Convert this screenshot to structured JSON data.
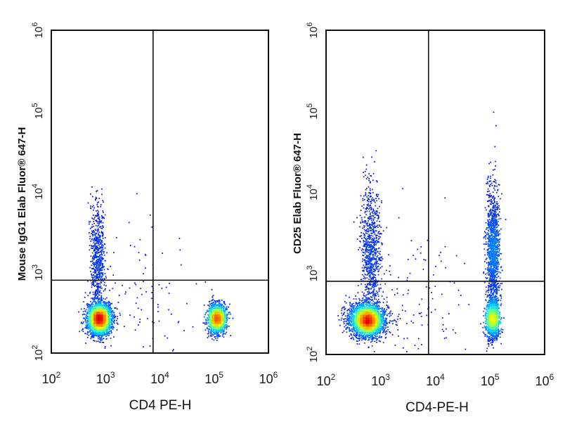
{
  "chart_data": [
    {
      "type": "scatter",
      "subtype": "flow-cytometry-density-dot-plot",
      "xlabel": "CD4 PE-H",
      "ylabel": "Mouse IgG1 Elab Fluor® 647-H",
      "xscale": "log",
      "yscale": "log",
      "xlim": [
        100,
        1000000
      ],
      "ylim": [
        100,
        1000000
      ],
      "x_ticks": [
        {
          "base": "10",
          "exp": "2",
          "value": 100
        },
        {
          "base": "10",
          "exp": "3",
          "value": 1000
        },
        {
          "base": "10",
          "exp": "4",
          "value": 10000
        },
        {
          "base": "10",
          "exp": "5",
          "value": 100000
        },
        {
          "base": "10",
          "exp": "6",
          "value": 1000000
        }
      ],
      "y_ticks": [
        {
          "base": "10",
          "exp": "2",
          "value": 100
        },
        {
          "base": "10",
          "exp": "3",
          "value": 1000
        },
        {
          "base": "10",
          "exp": "4",
          "value": 10000
        },
        {
          "base": "10",
          "exp": "5",
          "value": 100000
        },
        {
          "base": "10",
          "exp": "6",
          "value": 1000000
        }
      ],
      "quadrant_gate": {
        "x": 7500,
        "y": 800
      },
      "populations": [
        {
          "x": 750,
          "y": 270,
          "count": 2600,
          "sx": 0.11,
          "sy": 0.1
        },
        {
          "x": 700,
          "y": 1500,
          "count": 700,
          "sx": 0.07,
          "sy": 0.38
        },
        {
          "x": 110000,
          "y": 270,
          "count": 1800,
          "sx": 0.08,
          "sy": 0.09
        },
        {
          "x": 6000,
          "y": 400,
          "count": 90,
          "sx": 0.45,
          "sy": 0.45
        }
      ]
    },
    {
      "type": "scatter",
      "subtype": "flow-cytometry-density-dot-plot",
      "xlabel": "CD4-PE-H",
      "ylabel": "CD25 Elab Fluor® 647-H",
      "xscale": "log",
      "yscale": "log",
      "xlim": [
        100,
        1000000
      ],
      "ylim": [
        100,
        1000000
      ],
      "x_ticks": [
        {
          "base": "10",
          "exp": "2",
          "value": 100
        },
        {
          "base": "10",
          "exp": "3",
          "value": 1000
        },
        {
          "base": "10",
          "exp": "4",
          "value": 10000
        },
        {
          "base": "10",
          "exp": "5",
          "value": 100000
        },
        {
          "base": "10",
          "exp": "6",
          "value": 1000000
        }
      ],
      "y_ticks": [
        {
          "base": "10",
          "exp": "2",
          "value": 100
        },
        {
          "base": "10",
          "exp": "3",
          "value": 1000
        },
        {
          "base": "10",
          "exp": "4",
          "value": 10000
        },
        {
          "base": "10",
          "exp": "5",
          "value": 100000
        },
        {
          "base": "10",
          "exp": "6",
          "value": 1000000
        }
      ],
      "quadrant_gate": {
        "x": 7500,
        "y": 800
      },
      "populations": [
        {
          "x": 550,
          "y": 270,
          "count": 3000,
          "sx": 0.16,
          "sy": 0.1
        },
        {
          "x": 650,
          "y": 1800,
          "count": 900,
          "sx": 0.09,
          "sy": 0.42
        },
        {
          "x": 110000,
          "y": 280,
          "count": 1300,
          "sx": 0.06,
          "sy": 0.12
        },
        {
          "x": 110000,
          "y": 1800,
          "count": 1300,
          "sx": 0.06,
          "sy": 0.4
        },
        {
          "x": 5000,
          "y": 400,
          "count": 120,
          "sx": 0.45,
          "sy": 0.45
        }
      ]
    }
  ]
}
